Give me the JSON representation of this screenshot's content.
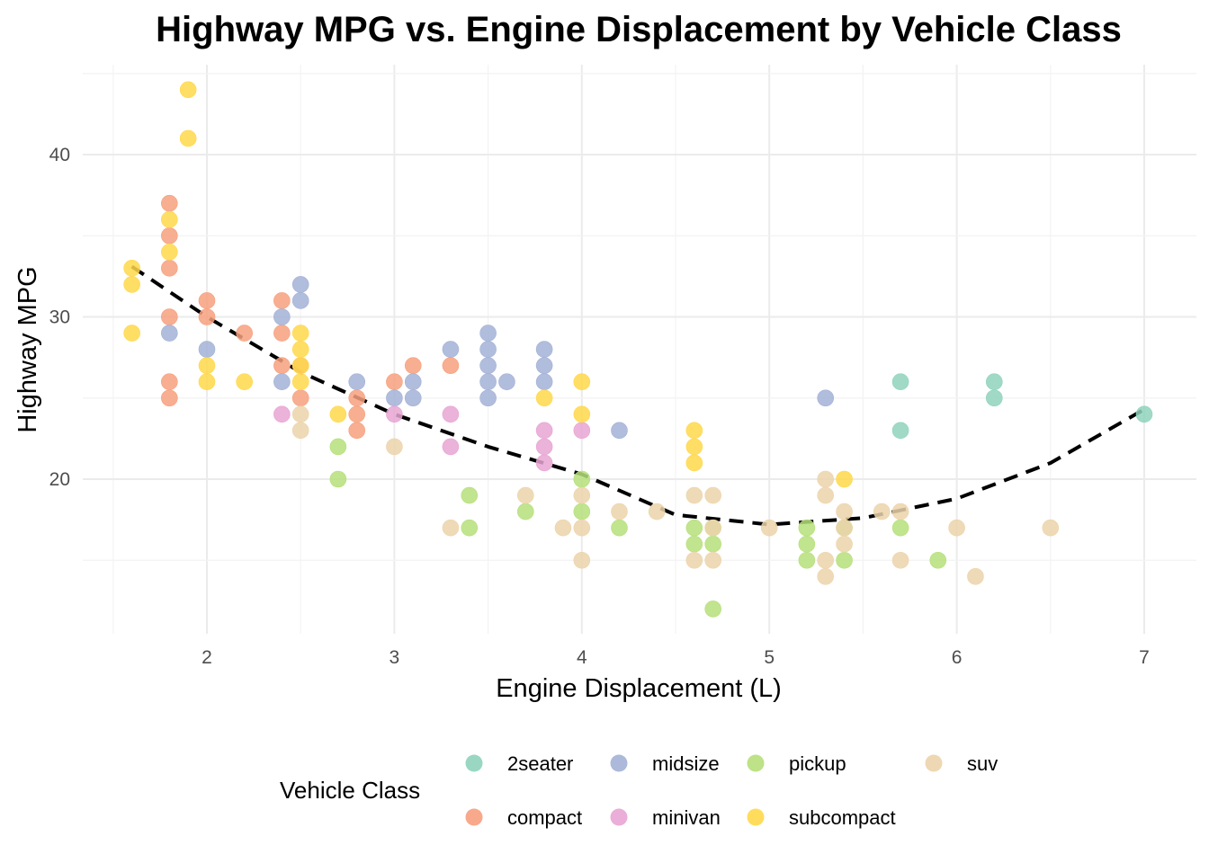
{
  "chart_data": {
    "type": "scatter",
    "title": "Highway MPG vs. Engine Displacement by Vehicle Class",
    "xlabel": "Engine Displacement (L)",
    "ylabel": "Highway MPG",
    "xlim": [
      1.45,
      7.15
    ],
    "ylim": [
      10.5,
      45.5
    ],
    "x_ticks": [
      2,
      3,
      4,
      5,
      6,
      7
    ],
    "y_ticks": [
      20,
      30,
      40
    ],
    "grid": true,
    "legend": {
      "title": "Vehicle Class",
      "position": "bottom",
      "entries": [
        "2seater",
        "midsize",
        "pickup",
        "suv",
        "compact",
        "minivan",
        "subcompact"
      ]
    },
    "colors": {
      "2seater": "#8fd3bd",
      "compact": "#f7a07e",
      "midsize": "#a3b1d6",
      "minivan": "#e8a5d4",
      "pickup": "#b6df7a",
      "subcompact": "#ffd84a",
      "suv": "#ecd4ab",
      "trend": "#000000"
    },
    "trend_line": {
      "style": "dashed",
      "x": [
        1.6,
        2.0,
        2.5,
        3.0,
        3.5,
        4.0,
        4.5,
        5.0,
        5.5,
        6.0,
        6.5,
        7.0
      ],
      "y": [
        33.1,
        30.0,
        26.6,
        24.0,
        22.0,
        20.3,
        17.8,
        17.2,
        17.6,
        18.8,
        21.0,
        24.3
      ]
    },
    "series": [
      {
        "name": "2seater",
        "x": [
          5.7,
          5.7,
          6.2,
          6.2,
          7.0
        ],
        "y": [
          26,
          23,
          26,
          25,
          24
        ]
      },
      {
        "name": "compact",
        "x": [
          1.8,
          1.8,
          1.8,
          1.8,
          1.8,
          1.8,
          2.0,
          2.0,
          2.2,
          2.4,
          2.4,
          2.4,
          2.5,
          2.5,
          2.8,
          2.8,
          2.8,
          3.0,
          3.1,
          3.3
        ],
        "y": [
          37,
          35,
          33,
          30,
          26,
          25,
          31,
          30,
          29,
          31,
          29,
          27,
          27,
          25,
          25,
          24,
          23,
          26,
          27,
          27
        ]
      },
      {
        "name": "midsize",
        "x": [
          1.8,
          2.0,
          2.4,
          2.4,
          2.5,
          2.5,
          2.8,
          3.0,
          3.1,
          3.1,
          3.3,
          3.5,
          3.5,
          3.5,
          3.5,
          3.5,
          3.6,
          3.8,
          3.8,
          3.8,
          4.2,
          5.3
        ],
        "y": [
          29,
          28,
          30,
          26,
          32,
          31,
          26,
          25,
          26,
          25,
          28,
          29,
          28,
          27,
          26,
          25,
          26,
          28,
          27,
          26,
          23,
          25
        ]
      },
      {
        "name": "minivan",
        "x": [
          2.4,
          3.0,
          3.3,
          3.3,
          3.8,
          3.8,
          3.8,
          4.0
        ],
        "y": [
          24,
          24,
          24,
          22,
          23,
          22,
          21,
          23
        ]
      },
      {
        "name": "pickup",
        "x": [
          2.7,
          2.7,
          3.4,
          3.4,
          3.7,
          4.0,
          4.0,
          4.2,
          4.6,
          4.6,
          4.7,
          4.7,
          4.7,
          5.2,
          5.2,
          5.2,
          5.4,
          5.4,
          5.7,
          5.9
        ],
        "y": [
          22,
          20,
          19,
          17,
          18,
          20,
          18,
          17,
          17,
          16,
          17,
          16,
          12,
          17,
          16,
          15,
          17,
          15,
          17,
          15
        ]
      },
      {
        "name": "subcompact",
        "x": [
          1.6,
          1.6,
          1.6,
          1.8,
          1.8,
          1.9,
          1.9,
          2.0,
          2.0,
          2.2,
          2.5,
          2.5,
          2.5,
          2.5,
          2.7,
          3.8,
          4.0,
          4.0,
          4.6,
          4.6,
          4.6,
          5.4
        ],
        "y": [
          33,
          32,
          29,
          36,
          34,
          44,
          41,
          27,
          26,
          26,
          29,
          28,
          27,
          26,
          24,
          25,
          26,
          24,
          23,
          22,
          21,
          20
        ]
      },
      {
        "name": "suv",
        "x": [
          2.5,
          2.5,
          3.0,
          3.3,
          3.7,
          3.9,
          4.0,
          4.0,
          4.0,
          4.2,
          4.4,
          4.6,
          4.6,
          4.7,
          4.7,
          4.7,
          5.0,
          5.3,
          5.3,
          5.3,
          5.3,
          5.4,
          5.4,
          5.4,
          5.6,
          5.7,
          5.7,
          6.1,
          6.0,
          6.5
        ],
        "y": [
          24,
          23,
          22,
          17,
          19,
          17,
          19,
          17,
          15,
          18,
          18,
          19,
          15,
          19,
          17,
          15,
          17,
          20,
          19,
          15,
          14,
          18,
          17,
          16,
          18,
          18,
          15,
          14,
          17,
          17
        ]
      }
    ]
  }
}
